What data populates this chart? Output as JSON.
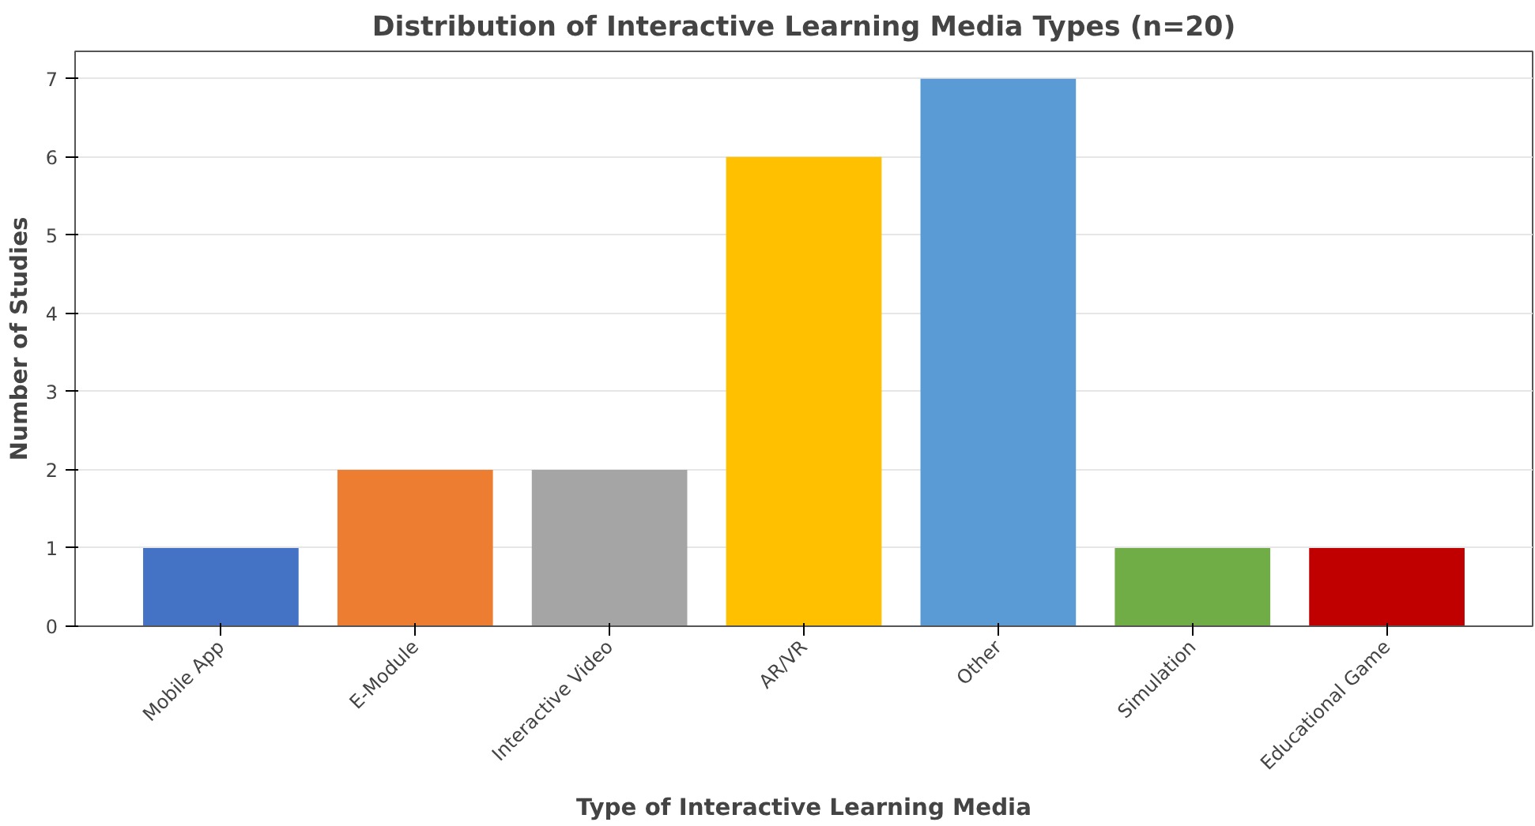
{
  "chart_data": {
    "type": "bar",
    "title": "Distribution of Interactive Learning Media Types (n=20)",
    "xlabel": "Type of Interactive Learning Media",
    "ylabel": "Number of Studies",
    "categories": [
      "Mobile App",
      "E-Module",
      "Interactive Video",
      "AR/VR",
      "Other",
      "Simulation",
      "Educational Game"
    ],
    "values": [
      1,
      2,
      2,
      6,
      7,
      1,
      1
    ],
    "colors": [
      "#4472c4",
      "#ed7d31",
      "#a5a5a5",
      "#ffc000",
      "#5b9bd5",
      "#70ad47",
      "#c00000"
    ],
    "ylim": [
      0,
      7.35
    ],
    "yticks": [
      0,
      1,
      2,
      3,
      4,
      5,
      6,
      7
    ],
    "grid": "y"
  }
}
